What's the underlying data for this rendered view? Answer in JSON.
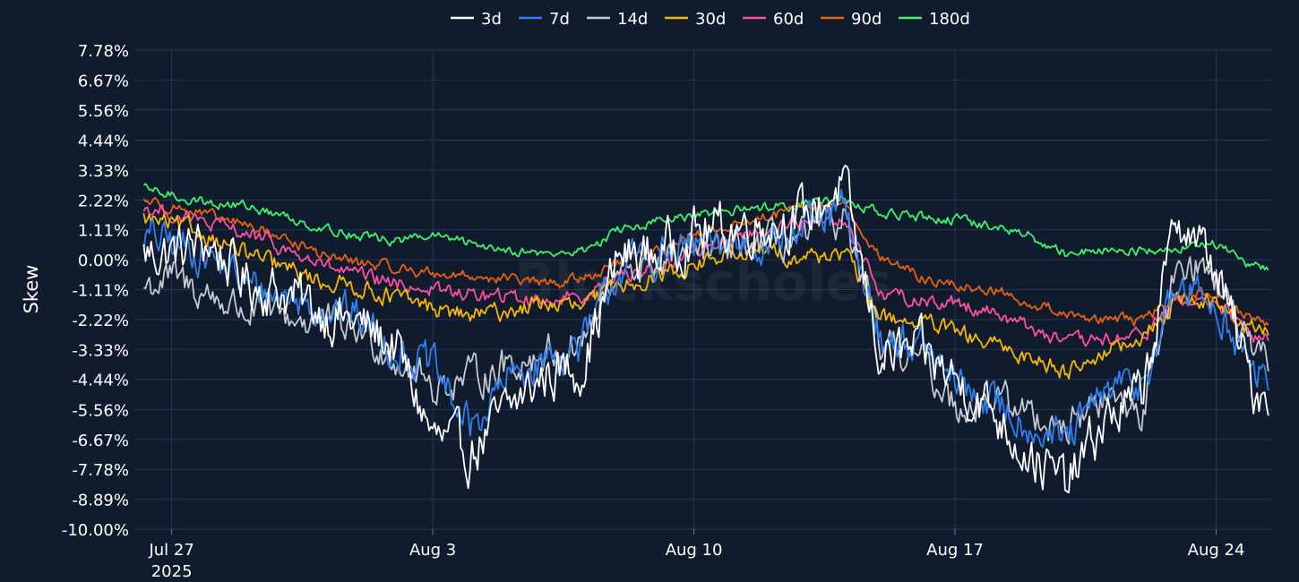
{
  "chart_data": {
    "type": "line",
    "title": "",
    "xlabel": "",
    "ylabel": "Skew",
    "watermark": "Blockscholes",
    "y_unit": "%",
    "ylim": [
      -10.0,
      7.78
    ],
    "y_ticks": [
      -10.0,
      -8.89,
      -7.78,
      -6.67,
      -5.56,
      -4.44,
      -3.33,
      -2.22,
      -1.11,
      0.0,
      1.11,
      2.22,
      3.33,
      4.44,
      5.56,
      6.67,
      7.78
    ],
    "y_tick_labels": [
      "-10.00%",
      "-8.89%",
      "-7.78%",
      "-6.67%",
      "-5.56%",
      "-4.44%",
      "-3.33%",
      "-2.22%",
      "-1.11%",
      "0.00%",
      "1.11%",
      "2.22%",
      "3.33%",
      "4.44%",
      "5.56%",
      "6.67%",
      "7.78%"
    ],
    "x_range": [
      "2025-07-26",
      "2025-08-25"
    ],
    "x_ticks": [
      {
        "date": "2025-07-27",
        "label": "Jul 27",
        "sublabel": "2025"
      },
      {
        "date": "2025-08-03",
        "label": "Aug 3"
      },
      {
        "date": "2025-08-10",
        "label": "Aug 10"
      },
      {
        "date": "2025-08-17",
        "label": "Aug 17"
      },
      {
        "date": "2025-08-24",
        "label": "Aug 24"
      }
    ],
    "grid": true,
    "legend_position": "top-center",
    "x": [
      "2025-07-26",
      "2025-07-27",
      "2025-07-28",
      "2025-07-29",
      "2025-07-30",
      "2025-07-31",
      "2025-08-01",
      "2025-08-02",
      "2025-08-03",
      "2025-08-04",
      "2025-08-05",
      "2025-08-06",
      "2025-08-07",
      "2025-08-08",
      "2025-08-09",
      "2025-08-10",
      "2025-08-11",
      "2025-08-12",
      "2025-08-13",
      "2025-08-14",
      "2025-08-15",
      "2025-08-16",
      "2025-08-17",
      "2025-08-18",
      "2025-08-19",
      "2025-08-20",
      "2025-08-21",
      "2025-08-22",
      "2025-08-23",
      "2025-08-24",
      "2025-08-25"
    ],
    "series": [
      {
        "name": "3d",
        "color": "#ffffff",
        "values": [
          0.2,
          0.3,
          0.6,
          -0.8,
          -1.2,
          -1.9,
          -2.4,
          -3.2,
          -6.6,
          -7.2,
          -5.6,
          -4.3,
          -3.9,
          0.1,
          0.2,
          1.0,
          1.2,
          1.4,
          1.6,
          2.8,
          -3.6,
          -3.4,
          -4.4,
          -5.6,
          -7.2,
          -8.4,
          -6.0,
          -5.0,
          1.7,
          -0.4,
          -4.8
        ]
      },
      {
        "name": "7d",
        "color": "#2f7fef",
        "values": [
          0.9,
          0.6,
          0.2,
          -1.0,
          -1.3,
          -1.7,
          -2.1,
          -3.3,
          -4.0,
          -6.3,
          -4.5,
          -3.7,
          -3.2,
          -0.3,
          0.1,
          0.4,
          0.6,
          0.8,
          1.0,
          1.9,
          -2.9,
          -3.1,
          -4.6,
          -5.3,
          -6.1,
          -6.8,
          -4.9,
          -4.6,
          -1.0,
          -1.6,
          -4.3
        ]
      },
      {
        "name": "14d",
        "color": "#c4c8cf",
        "values": [
          -1.1,
          -0.7,
          -1.3,
          -1.9,
          -2.1,
          -2.3,
          -2.6,
          -3.6,
          -4.7,
          -4.4,
          -3.9,
          -3.5,
          -3.0,
          -0.5,
          -0.1,
          0.2,
          0.4,
          0.6,
          0.8,
          1.6,
          -3.3,
          -3.6,
          -5.4,
          -5.1,
          -5.7,
          -6.2,
          -5.1,
          -5.7,
          0.2,
          -0.6,
          -3.8
        ]
      },
      {
        "name": "30d",
        "color": "#f5b700",
        "values": [
          1.6,
          1.3,
          0.9,
          0.2,
          -0.3,
          -0.8,
          -1.0,
          -1.4,
          -1.8,
          -2.1,
          -1.9,
          -1.6,
          -1.8,
          -0.9,
          -0.6,
          -0.2,
          0.2,
          0.3,
          0.1,
          0.3,
          -2.1,
          -2.3,
          -2.7,
          -3.2,
          -3.6,
          -4.1,
          -3.4,
          -3.1,
          -1.3,
          -1.7,
          -2.6
        ]
      },
      {
        "name": "60d",
        "color": "#ff4fa3",
        "values": [
          2.0,
          1.7,
          1.3,
          1.0,
          0.4,
          -0.2,
          -0.6,
          -0.9,
          -1.1,
          -1.3,
          -1.4,
          -1.5,
          -1.3,
          -0.6,
          -0.3,
          0.3,
          0.8,
          1.1,
          1.4,
          1.6,
          -1.2,
          -1.5,
          -1.6,
          -1.9,
          -2.5,
          -3.1,
          -3.0,
          -2.8,
          -1.5,
          -1.6,
          -2.9
        ]
      },
      {
        "name": "90d",
        "color": "#e8620e",
        "values": [
          2.3,
          2.0,
          1.6,
          1.3,
          0.8,
          0.2,
          -0.1,
          -0.3,
          -0.5,
          -0.6,
          -0.7,
          -0.9,
          -0.7,
          -0.1,
          0.3,
          0.8,
          1.3,
          1.6,
          1.9,
          2.1,
          0.1,
          -0.6,
          -1.0,
          -1.1,
          -1.6,
          -2.0,
          -2.2,
          -2.3,
          -1.3,
          -1.2,
          -2.3
        ]
      },
      {
        "name": "180d",
        "color": "#3df36a",
        "values": [
          2.7,
          2.4,
          2.1,
          2.0,
          1.6,
          1.2,
          0.9,
          0.7,
          0.9,
          0.6,
          0.4,
          0.2,
          0.3,
          1.1,
          1.4,
          1.6,
          1.8,
          2.0,
          2.1,
          2.3,
          1.7,
          1.6,
          1.5,
          1.2,
          0.9,
          0.2,
          0.4,
          0.3,
          0.5,
          0.6,
          -0.3
        ]
      }
    ]
  }
}
